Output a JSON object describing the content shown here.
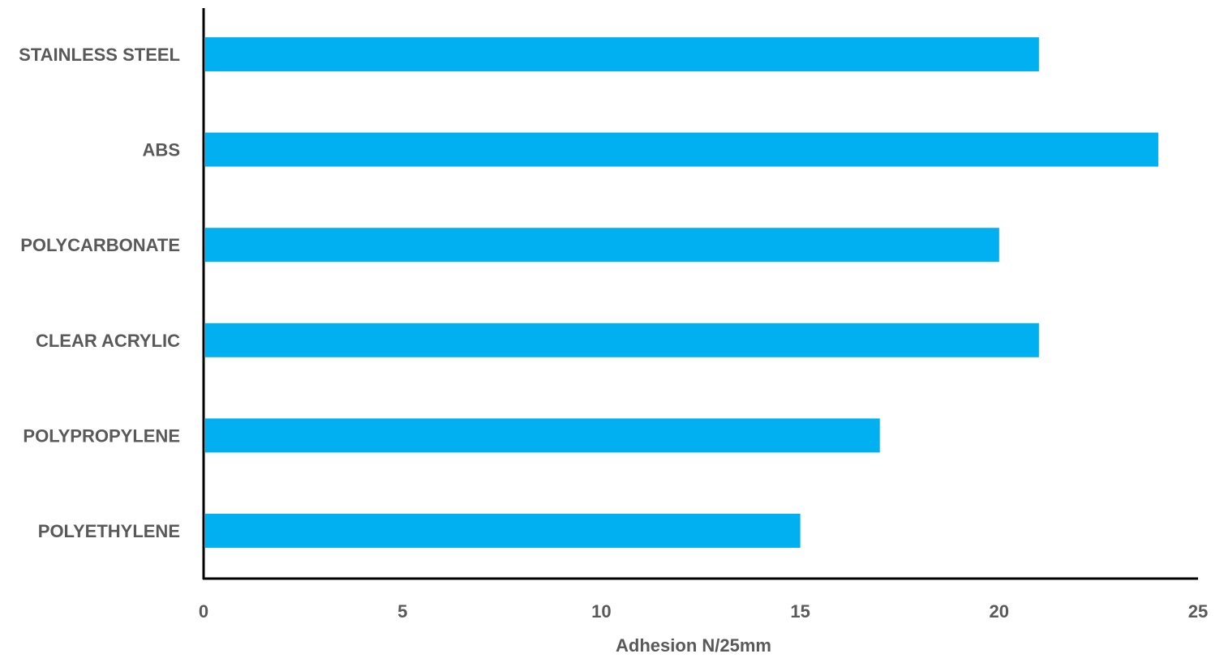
{
  "chart_data": {
    "type": "bar",
    "orientation": "horizontal",
    "categories": [
      "STAINLESS STEEL",
      "ABS",
      "POLYCARBONATE",
      "CLEAR ACRYLIC",
      "POLYPROPYLENE",
      "POLYETHYLENE"
    ],
    "values": [
      21,
      24,
      20,
      21,
      17,
      15
    ],
    "xlabel": "Adhesion N/25mm",
    "ylabel": "",
    "xlim": [
      0,
      25
    ],
    "xticks": [
      "0",
      "5",
      "10",
      "15",
      "20",
      "25"
    ],
    "grid": false,
    "legend": "none",
    "bar_color": "#00B0F0",
    "axis_color": "#000000",
    "text_color": "#595959"
  }
}
